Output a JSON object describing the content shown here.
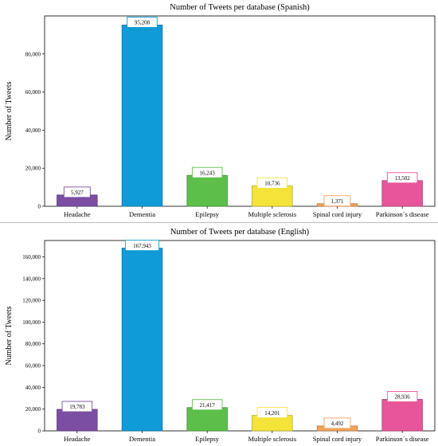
{
  "chart_data": [
    {
      "type": "bar",
      "title": "Number of Tweets per database (Spanish)",
      "xlabel": "",
      "ylabel": "Number of Tweets",
      "categories": [
        "Headache",
        "Dementia",
        "Epilepsy",
        "Multiple sclerosis",
        "Spinal cord injury",
        "Parkinson´s disease"
      ],
      "values": [
        5927,
        95208,
        16243,
        10736,
        1371,
        13502
      ],
      "value_labels": [
        "5,927",
        "95,208",
        "16,243",
        "10,736",
        "1,371",
        "13,502"
      ],
      "colors": [
        "#7b4ea3",
        "#0f9bd7",
        "#5cbf4a",
        "#f4e43a",
        "#f0a45a",
        "#e8559a"
      ],
      "yticks": [
        0,
        20000,
        40000,
        60000,
        80000
      ],
      "ytick_labels": [
        "0",
        "20,000",
        "40,000",
        "60,000",
        "80,000"
      ],
      "ylim": [
        0,
        100000
      ],
      "grid": false,
      "legend": "none"
    },
    {
      "type": "bar",
      "title": "Number of Tweets per database (English)",
      "xlabel": "",
      "ylabel": "Number of Tweets",
      "categories": [
        "Headache",
        "Dementia",
        "Epilepsy",
        "Multiple sclerosis",
        "Spinal cord injury",
        "Parkinson´s disease"
      ],
      "values": [
        19783,
        167943,
        21417,
        14201,
        4492,
        28936
      ],
      "value_labels": [
        "19,783",
        "167,943",
        "21,417",
        "14,201",
        "4,492",
        "28,936"
      ],
      "colors": [
        "#7b4ea3",
        "#0f9bd7",
        "#5cbf4a",
        "#f4e43a",
        "#f0a45a",
        "#e8559a"
      ],
      "yticks": [
        0,
        20000,
        40000,
        60000,
        80000,
        100000,
        120000,
        140000,
        160000
      ],
      "ytick_labels": [
        "0",
        "20,000",
        "40,000",
        "60,000",
        "80,000",
        "100,000",
        "120,000",
        "140,000",
        "160,000"
      ],
      "ylim": [
        0,
        175000
      ],
      "grid": false,
      "legend": "none"
    }
  ]
}
